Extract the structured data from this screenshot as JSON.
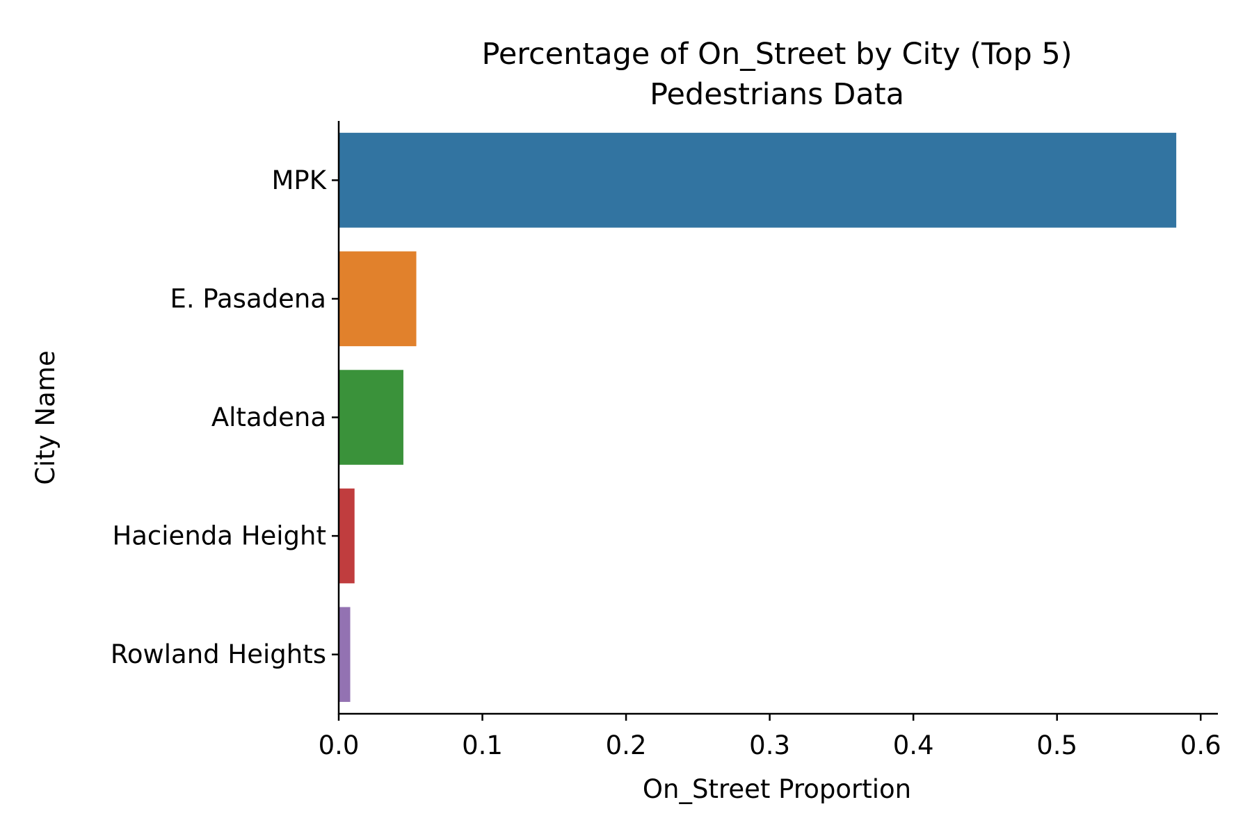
{
  "chart_data": {
    "type": "bar",
    "orientation": "horizontal",
    "title": "Percentage of On_Street by City (Top 5)",
    "subtitle": "Pedestrians Data",
    "xlabel": "On_Street Proportion",
    "ylabel": "City Name",
    "categories": [
      "MPK",
      "E. Pasadena",
      "Altadena",
      "Hacienda Height",
      "Rowland Heights"
    ],
    "values": [
      0.583,
      0.054,
      0.045,
      0.011,
      0.008
    ],
    "colors": [
      "#3274a1",
      "#e1812c",
      "#3a923a",
      "#c03d3e",
      "#9372b2"
    ],
    "xlim": [
      0,
      0.612
    ],
    "xticks": [
      0.0,
      0.1,
      0.2,
      0.3,
      0.4,
      0.5,
      0.6
    ],
    "xtick_labels": [
      "0.0",
      "0.1",
      "0.2",
      "0.3",
      "0.4",
      "0.5",
      "0.6"
    ],
    "grid": false,
    "legend": "none"
  }
}
